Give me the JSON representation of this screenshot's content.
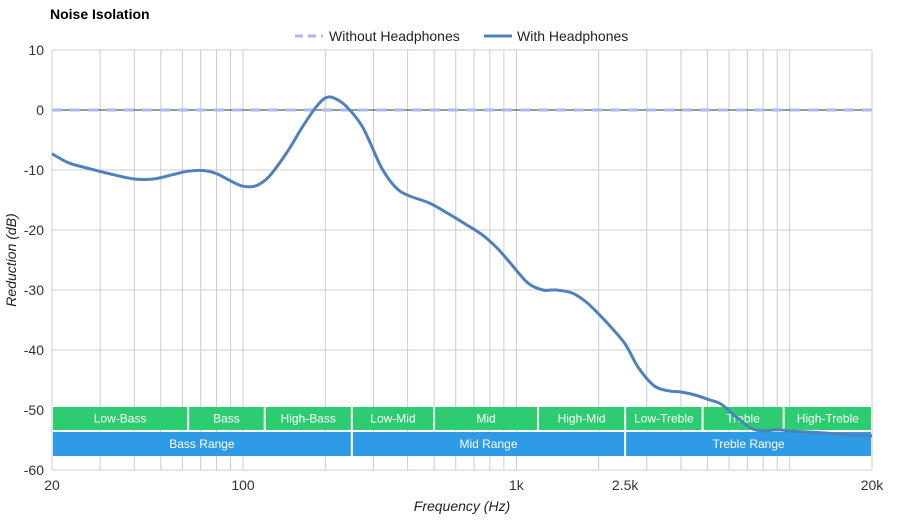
{
  "chart_data": {
    "type": "line",
    "title": "Noise Isolation",
    "xlabel": "Frequency (Hz)",
    "ylabel": "Reduction (dB)",
    "x_scale": "log",
    "xlim": [
      20,
      20000
    ],
    "ylim": [
      -60,
      10
    ],
    "x_ticks": [
      {
        "value": 20,
        "label": "20"
      },
      {
        "value": 100,
        "label": "100"
      },
      {
        "value": 1000,
        "label": "1k"
      },
      {
        "value": 2500,
        "label": "2.5k"
      },
      {
        "value": 20000,
        "label": "20k"
      }
    ],
    "y_ticks": [
      10,
      0,
      -10,
      -20,
      -30,
      -40,
      -50,
      -60
    ],
    "grid": true,
    "legend_position": "top-center",
    "series": [
      {
        "name": "Without Headphones",
        "color": "#aab9f5",
        "style": "dashed",
        "x": [
          20,
          20000
        ],
        "y": [
          0,
          0
        ]
      },
      {
        "name": "With Headphones",
        "color": "#4f81bd",
        "style": "solid",
        "x": [
          20,
          23,
          27,
          33,
          40,
          47,
          55,
          63,
          72,
          80,
          90,
          100,
          112,
          125,
          145,
          165,
          185,
          200,
          215,
          240,
          275,
          320,
          360,
          400,
          480,
          560,
          650,
          750,
          850,
          950,
          1100,
          1250,
          1400,
          1600,
          1800,
          2000,
          2200,
          2500,
          2800,
          3200,
          3600,
          4000,
          4500,
          5000,
          5600,
          6300,
          7200,
          8000,
          9000,
          10000,
          11000,
          13000,
          15000,
          17000,
          20000
        ],
        "y": [
          -7.3,
          -8.8,
          -9.7,
          -10.7,
          -11.5,
          -11.5,
          -10.8,
          -10.2,
          -10.1,
          -10.6,
          -11.8,
          -12.7,
          -12.6,
          -11,
          -7,
          -2.8,
          0.5,
          2,
          2,
          0.5,
          -3,
          -9.5,
          -12.8,
          -14.2,
          -15.5,
          -17.2,
          -19,
          -20.8,
          -23,
          -25.5,
          -28.8,
          -30,
          -30,
          -30.5,
          -32,
          -34,
          -36,
          -39,
          -43,
          -46,
          -46.8,
          -47,
          -47.5,
          -48.2,
          -49,
          -51,
          -53,
          -53.5,
          -53.3,
          -53.5,
          -53.6,
          -53.8,
          -54,
          -54.2,
          -54.3
        ]
      }
    ],
    "ranges": [
      {
        "label": "Low-Bass",
        "from": 20,
        "to": 63,
        "color": "#2ecc71",
        "row": 1
      },
      {
        "label": "Bass",
        "from": 63,
        "to": 120,
        "color": "#2ecc71",
        "row": 1
      },
      {
        "label": "High-Bass",
        "from": 120,
        "to": 250,
        "color": "#2ecc71",
        "row": 1
      },
      {
        "label": "Low-Mid",
        "from": 250,
        "to": 500,
        "color": "#2ecc71",
        "row": 1
      },
      {
        "label": "Mid",
        "from": 500,
        "to": 1200,
        "color": "#2ecc71",
        "row": 1
      },
      {
        "label": "High-Mid",
        "from": 1200,
        "to": 2500,
        "color": "#2ecc71",
        "row": 1
      },
      {
        "label": "Low-Treble",
        "from": 2500,
        "to": 4800,
        "color": "#2ecc71",
        "row": 1
      },
      {
        "label": "Treble",
        "from": 4800,
        "to": 9500,
        "color": "#2ecc71",
        "row": 1
      },
      {
        "label": "High-Treble",
        "from": 9500,
        "to": 20000,
        "color": "#2ecc71",
        "row": 1
      },
      {
        "label": "Bass Range",
        "from": 20,
        "to": 250,
        "color": "#2f9ae6",
        "row": 2
      },
      {
        "label": "Mid Range",
        "from": 250,
        "to": 2500,
        "color": "#2f9ae6",
        "row": 2
      },
      {
        "label": "Treble Range",
        "from": 2500,
        "to": 20000,
        "color": "#2f9ae6",
        "row": 2
      }
    ]
  }
}
